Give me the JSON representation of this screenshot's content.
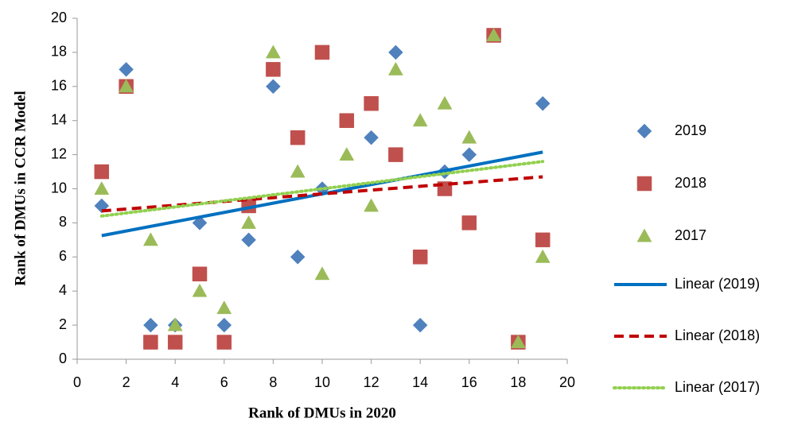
{
  "chart_data": {
    "type": "scatter",
    "x_label": "Rank of DMUs in 2020",
    "y_label": "Rank of DMUs in CCR Model",
    "xlim": [
      0,
      20
    ],
    "xticks": [
      0,
      2,
      4,
      6,
      8,
      10,
      12,
      14,
      16,
      18,
      20
    ],
    "ylim": [
      0,
      20
    ],
    "yticks": [
      0,
      2,
      4,
      6,
      8,
      10,
      12,
      14,
      16,
      18,
      20
    ],
    "series": [
      {
        "name": "2019",
        "color": "#4f81bd",
        "marker": "diamond",
        "x": [
          1,
          2,
          3,
          4,
          5,
          6,
          7,
          8,
          9,
          10,
          12,
          13,
          14,
          15,
          16,
          19
        ],
        "values": [
          9,
          17,
          2,
          2,
          8,
          2,
          7,
          16,
          6,
          10,
          13,
          18,
          2,
          11,
          12,
          15
        ]
      },
      {
        "name": "2018",
        "color": "#c0504d",
        "marker": "square",
        "x": [
          1,
          2,
          3,
          4,
          5,
          6,
          7,
          8,
          9,
          10,
          11,
          12,
          13,
          14,
          15,
          16,
          17,
          18,
          19
        ],
        "values": [
          11,
          16,
          1,
          1,
          5,
          1,
          9,
          17,
          13,
          18,
          14,
          15,
          12,
          6,
          10,
          8,
          19,
          1,
          7
        ]
      },
      {
        "name": "2017",
        "color": "#9bbb59",
        "marker": "triangle",
        "x": [
          1,
          2,
          3,
          4,
          5,
          6,
          7,
          8,
          9,
          10,
          11,
          12,
          13,
          14,
          15,
          16,
          17,
          18,
          19
        ],
        "values": [
          10,
          16,
          7,
          2,
          4,
          3,
          8,
          18,
          11,
          5,
          12,
          9,
          17,
          14,
          15,
          13,
          19,
          1,
          6
        ]
      }
    ],
    "trendlines": [
      {
        "name": "Linear (2019)",
        "color": "#0070c0",
        "dash": "solid",
        "x": [
          1,
          19
        ],
        "values": [
          7.25,
          12.15
        ]
      },
      {
        "name": "Linear (2018)",
        "color": "#c00000",
        "dash": "dashed",
        "x": [
          1,
          19
        ],
        "values": [
          8.7,
          10.7
        ]
      },
      {
        "name": "Linear (2017)",
        "color": "#92d050",
        "dash": "dotted",
        "x": [
          1,
          19
        ],
        "values": [
          8.4,
          11.6
        ]
      }
    ]
  }
}
